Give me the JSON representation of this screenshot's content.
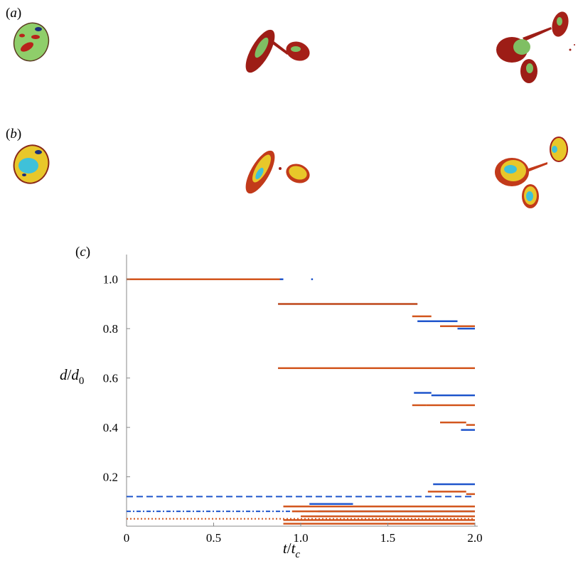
{
  "panels": {
    "a": {
      "open": "(",
      "letter": "a",
      "close": ")"
    },
    "b": {
      "open": "(",
      "letter": "b",
      "close": ")"
    },
    "c": {
      "open": "(",
      "letter": "c",
      "close": ")"
    }
  },
  "snapshot_rows": [
    {
      "panel": "a",
      "colormap": "green-red",
      "frames": 3
    },
    {
      "panel": "b",
      "colormap": "blue-yellow-red",
      "frames": 3
    }
  ],
  "chart_data": {
    "type": "scatter",
    "xlim": [
      0,
      2.0
    ],
    "ylim": [
      0,
      1.1
    ],
    "xticks": [
      "0",
      "0.5",
      "1.0",
      "1.5",
      "2.0"
    ],
    "xtick_values": [
      0,
      0.5,
      1.0,
      1.5,
      2.0
    ],
    "yticks": [
      "0.2",
      "0.4",
      "0.6",
      "0.8",
      "1.0"
    ],
    "ytick_values": [
      0.2,
      0.4,
      0.6,
      0.8,
      1.0
    ],
    "xlabel": {
      "main": "t",
      "slash": "/",
      "base": "t",
      "sub": "c"
    },
    "ylabel": {
      "main": "d",
      "slash": "/",
      "base": "d",
      "sub": "0"
    },
    "colors": {
      "blue": "#1f55cc",
      "orange": "#d2561e"
    },
    "series": [
      {
        "color": "blue",
        "segments": [
          [
            0.0,
            0.9,
            1.0
          ],
          [
            1.06,
            1.07,
            1.0
          ],
          [
            0.87,
            1.67,
            0.9
          ],
          [
            1.67,
            1.9,
            0.83
          ],
          [
            1.9,
            2.0,
            0.8
          ],
          [
            0.87,
            2.0,
            0.64
          ],
          [
            1.65,
            1.75,
            0.54
          ],
          [
            1.75,
            2.0,
            0.53
          ],
          [
            1.92,
            2.0,
            0.39
          ],
          [
            1.76,
            2.0,
            0.17
          ],
          [
            1.05,
            1.3,
            0.09
          ],
          [
            1.1,
            2.0,
            0.06
          ]
        ]
      },
      {
        "color": "orange",
        "segments": [
          [
            0.0,
            0.88,
            1.0
          ],
          [
            0.87,
            1.67,
            0.9
          ],
          [
            1.64,
            1.75,
            0.85
          ],
          [
            1.8,
            2.0,
            0.81
          ],
          [
            0.87,
            2.0,
            0.64
          ],
          [
            1.64,
            1.72,
            0.49
          ],
          [
            1.72,
            2.0,
            0.49
          ],
          [
            1.8,
            1.95,
            0.42
          ],
          [
            1.95,
            2.0,
            0.41
          ],
          [
            1.73,
            1.95,
            0.14
          ],
          [
            1.95,
            2.0,
            0.13
          ],
          [
            0.9,
            2.0,
            0.08
          ],
          [
            0.95,
            2.0,
            0.06
          ],
          [
            1.0,
            2.0,
            0.04
          ],
          [
            0.9,
            2.0,
            0.025
          ],
          [
            0.9,
            2.0,
            0.01
          ]
        ]
      }
    ],
    "reference_lines": [
      {
        "color": "blue",
        "style": "dashed",
        "y": 0.12
      },
      {
        "color": "blue",
        "style": "dashdot",
        "y": 0.06
      },
      {
        "color": "orange",
        "style": "dotted",
        "y": 0.03
      }
    ]
  }
}
